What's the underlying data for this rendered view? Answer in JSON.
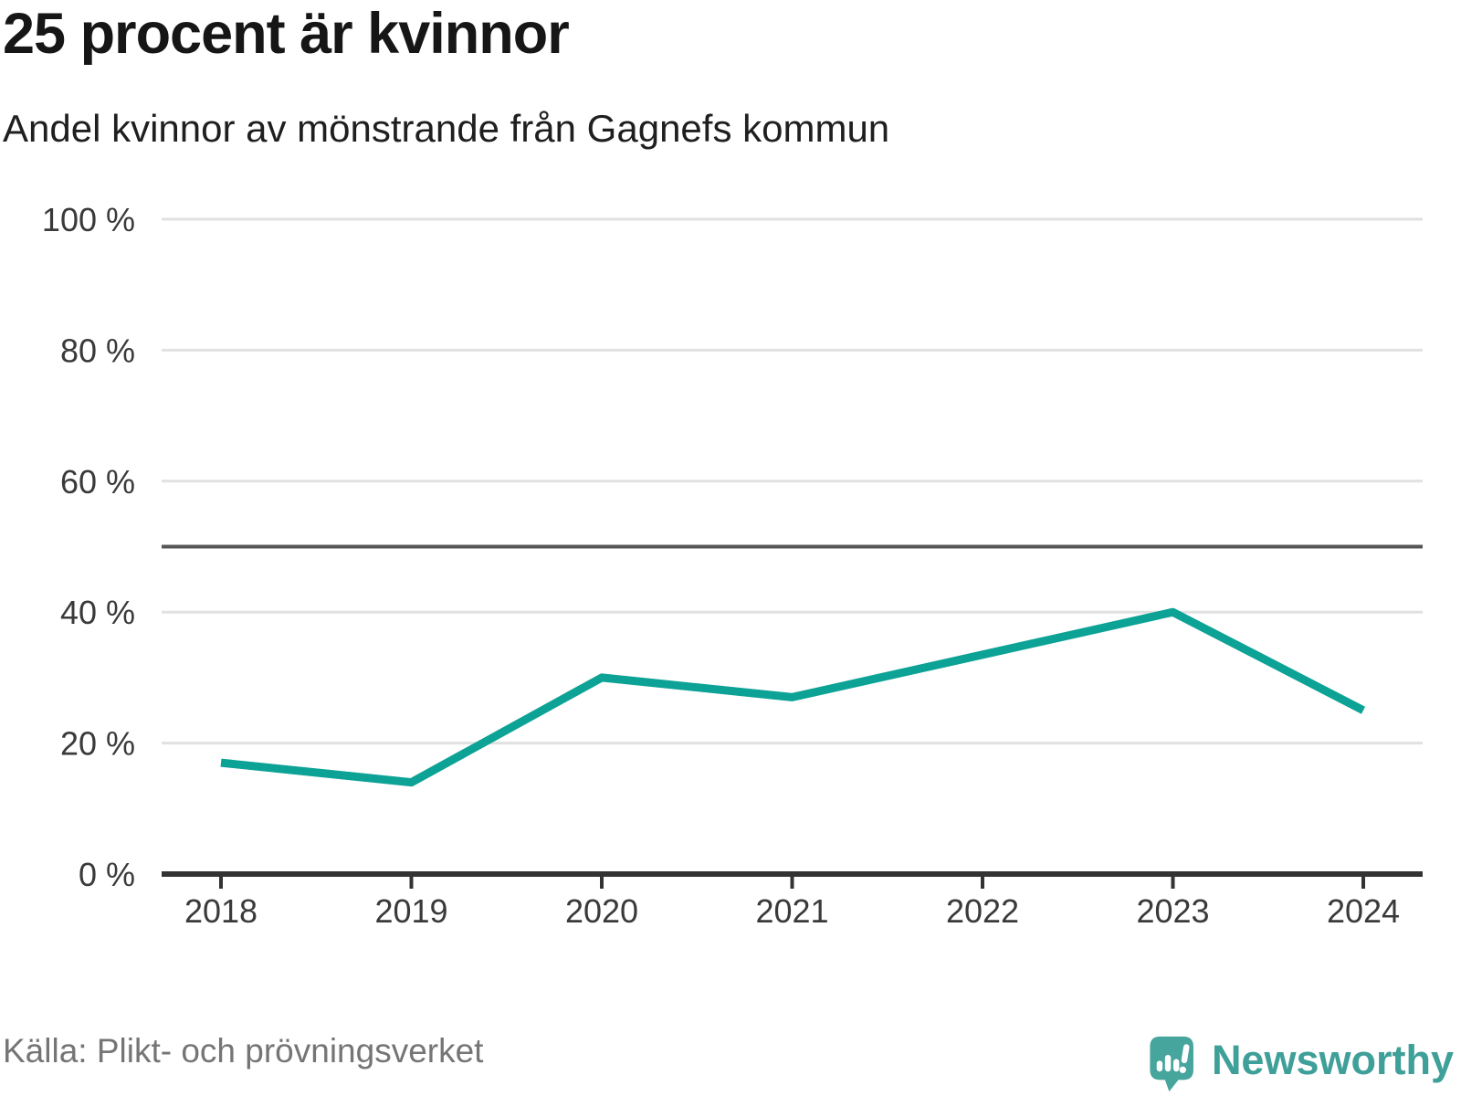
{
  "header": {
    "title": "25 procent är kvinnor",
    "subtitle": "Andel kvinnor av mönstrande från Gagnefs kommun"
  },
  "footer": {
    "source": "Källa: Plikt- och prövningsverket",
    "brand": "Newsworthy"
  },
  "colors": {
    "accent": "#0ca295",
    "reference_line": "#565656",
    "grid": "#e1e1e1",
    "axis": "#333333",
    "tick_text": "#3a3a3a",
    "title_text": "#161616",
    "source_text": "#757575",
    "brand_text": "#3f9f99",
    "brand_icon": "#46a59d"
  },
  "chart_data": {
    "type": "line",
    "title": "25 procent är kvinnor",
    "subtitle": "Andel kvinnor av mönstrande från Gagnefs kommun",
    "source": "Källa: Plikt- och prövningsverket",
    "x": [
      2018,
      2019,
      2020,
      2021,
      2022,
      2023,
      2024
    ],
    "series": [
      {
        "name": "Andel kvinnor av mönstrande",
        "values": [
          17,
          14,
          30,
          27,
          33.5,
          40,
          25
        ]
      }
    ],
    "ylim": [
      0,
      100
    ],
    "yticks": [
      0,
      20,
      40,
      60,
      80,
      100
    ],
    "ytick_suffix": " %",
    "reference_line": 50,
    "grid": true,
    "legend": false
  }
}
